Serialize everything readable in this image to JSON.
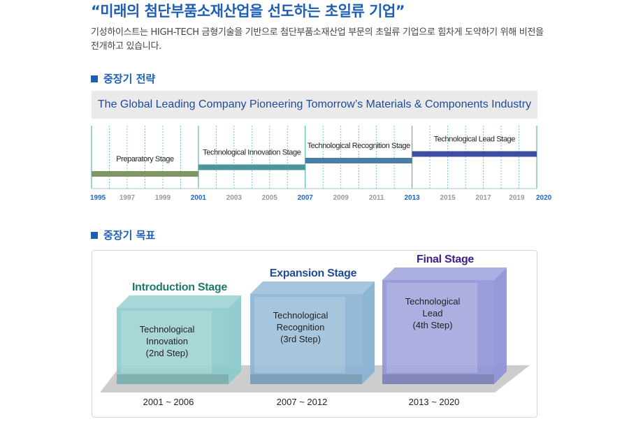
{
  "header": {
    "headline": "“미래의 첨단부품소재산업을 선도하는 초일류 기업”",
    "intro": "기성하이스트는 HIGH-TECH 금형기술을 기반으로 첨단부품소재산업 부문의 초일류 기업으로 힘차게 도약하기 위해 비전을 전개하고 있습니다."
  },
  "strategy": {
    "section_title": "중장기 전략",
    "banner": "The Global Leading Company Pioneering Tomorrow’s Materials & Components Industry",
    "stages": [
      {
        "label": "Preparatory Stage",
        "start": 1995,
        "end": 2001,
        "level": 1,
        "color": "#7f9563"
      },
      {
        "label": "Technological Innovation Stage",
        "start": 2001,
        "end": 2007,
        "level": 2,
        "color": "#4b969a"
      },
      {
        "label": "Technological Recognition Stage",
        "start": 2007,
        "end": 2013,
        "level": 3,
        "color": "#4a7ea6"
      },
      {
        "label": "Technological Lead Stage",
        "start": 2013,
        "end": 2020,
        "level": 4,
        "color": "#3f4fa0"
      }
    ],
    "year_labels": [
      "1995",
      "1997",
      "1999",
      "2001",
      "2003",
      "2005",
      "2007",
      "2009",
      "2011",
      "2013",
      "2015",
      "2017",
      "2019",
      "2020"
    ],
    "highlight_years": [
      "1995",
      "2001",
      "2007",
      "2013",
      "2020"
    ],
    "colors": {
      "highlight_year": "#1e66c9",
      "normal_year": "#999999"
    }
  },
  "goals": {
    "section_title": "중장기 목표",
    "blocks": [
      {
        "title": "Introduction Stage",
        "lines": [
          "Technological",
          "Innovation",
          "(2nd Step)"
        ],
        "period": "2001 ~ 2006",
        "title_color": "#1f7a66",
        "face_color": "#8cc9c9",
        "level": 1
      },
      {
        "title": "Expansion Stage",
        "lines": [
          "Technological",
          "Recognition",
          "(3rd Step)"
        ],
        "period": "2007 ~ 2012",
        "title_color": "#1f4c94",
        "face_color": "#88b2d3",
        "level": 2
      },
      {
        "title": "Final Stage",
        "lines": [
          "Technological",
          "Lead",
          "(4th Step)"
        ],
        "period": "2013 ~ 2020",
        "title_color": "#3a1e8c",
        "face_color": "#8f93d6",
        "level": 3
      }
    ]
  }
}
